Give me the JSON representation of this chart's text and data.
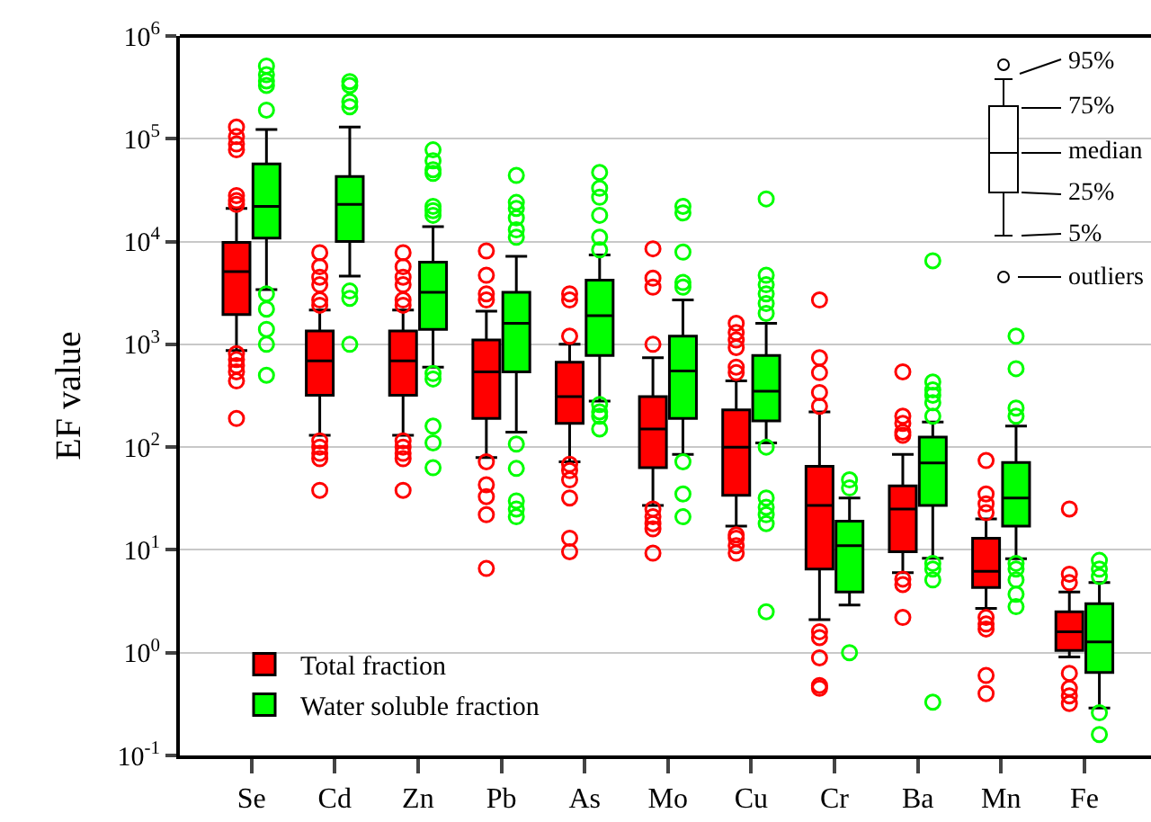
{
  "chart_data": {
    "type": "box",
    "ylabel": "EF value",
    "log": true,
    "grid": "y",
    "legend": "bottom left",
    "categories": [
      "Se",
      "Cd",
      "Zn",
      "Pb",
      "As",
      "Mo",
      "Cu",
      "Cr",
      "Ba",
      "Mn",
      "Fe"
    ],
    "ylim": [
      0.1,
      1000000
    ],
    "yticks": [
      {
        "value": 0.1,
        "label": "10$^{-1}$"
      },
      {
        "value": 1,
        "label": "10$^{0}$"
      },
      {
        "value": 10,
        "label": "10$^{1}$"
      },
      {
        "value": 100,
        "label": "10$^{2}$"
      },
      {
        "value": 1000,
        "label": "10$^{3}$"
      },
      {
        "value": 10000,
        "label": "10$^{4}$"
      },
      {
        "value": 100000,
        "label": "10$^{5}$"
      },
      {
        "value": 1000000,
        "label": "10$^{6}$"
      }
    ],
    "annotations": [
      "95%",
      "75%",
      "median",
      "25%",
      "5%",
      "outliers"
    ],
    "series": [
      {
        "name": "Total fraction",
        "color": "#ff0000",
        "boxes": [
          {
            "low": 870,
            "q1": 1950,
            "median": 5100,
            "q3": 9800,
            "high": 21000,
            "outliers": [
              130000,
              105000,
              89000,
              78000,
              28000,
              25000,
              23000,
              810,
              710,
              620,
              540,
              440,
              190
            ]
          },
          {
            "low": 130,
            "q1": 320,
            "median": 690,
            "q3": 1350,
            "high": 2150,
            "outliers": [
              7800,
              5700,
              4500,
              3800,
              2700,
              2400,
              115,
              100,
              87,
              77,
              38
            ]
          },
          {
            "low": 130,
            "q1": 320,
            "median": 690,
            "q3": 1350,
            "high": 2150,
            "outliers": [
              7800,
              5700,
              4500,
              3800,
              2700,
              2400,
              115,
              100,
              87,
              77,
              38
            ]
          },
          {
            "low": 79,
            "q1": 190,
            "median": 540,
            "q3": 1100,
            "high": 2100,
            "outliers": [
              8100,
              4700,
              3100,
              2700,
              72,
              43,
              33,
              22,
              6.6
            ]
          },
          {
            "low": 72,
            "q1": 170,
            "median": 310,
            "q3": 670,
            "high": 1000,
            "outliers": [
              3100,
              2700,
              1200,
              68,
              59,
              48,
              32,
              13,
              9.6
            ]
          },
          {
            "low": 27,
            "q1": 63,
            "median": 150,
            "q3": 310,
            "high": 740,
            "outliers": [
              8500,
              4400,
              3600,
              1000,
              25,
              21,
              18,
              16,
              9.3
            ]
          },
          {
            "low": 17,
            "q1": 34,
            "median": 100,
            "q3": 230,
            "high": 440,
            "outliers": [
              1600,
              1300,
              1100,
              930,
              600,
              530,
              14,
              13,
              11,
              9.3
            ]
          },
          {
            "low": 2.1,
            "q1": 6.5,
            "median": 27,
            "q3": 65,
            "high": 220,
            "outliers": [
              2700,
              740,
              530,
              340,
              250,
              1.6,
              1.4,
              0.89,
              0.48,
              0.45
            ]
          },
          {
            "low": 6,
            "q1": 9.6,
            "median": 25,
            "q3": 42,
            "high": 85,
            "outliers": [
              540,
              200,
              170,
              140,
              130,
              5.2,
              4.6,
              2.2
            ]
          },
          {
            "low": 2.7,
            "q1": 4.3,
            "median": 6.2,
            "q3": 13,
            "high": 20,
            "outliers": [
              74,
              35,
              28,
              23,
              2.2,
              1.9,
              1.7,
              0.6,
              0.4
            ]
          },
          {
            "low": 0.91,
            "q1": 1.05,
            "median": 1.6,
            "q3": 2.5,
            "high": 3.9,
            "outliers": [
              25,
              5.8,
              4.8,
              0.63,
              0.45,
              0.38,
              0.32
            ]
          }
        ]
      },
      {
        "name": "Water soluble fraction",
        "color": "#00ff00",
        "boxes": [
          {
            "low": 3400,
            "q1": 10800,
            "median": 22000,
            "q3": 57000,
            "high": 123000,
            "outliers": [
              510000,
              420000,
              365000,
              330000,
              190000,
              3100,
              2200,
              1400,
              1000,
              500
            ]
          },
          {
            "low": 4600,
            "q1": 10000,
            "median": 23000,
            "q3": 43000,
            "high": 130000,
            "outliers": [
              360000,
              330000,
              230000,
              205000,
              3300,
              2800,
              1000
            ]
          },
          {
            "low": 600,
            "q1": 1400,
            "median": 3200,
            "q3": 6300,
            "high": 14000,
            "outliers": [
              78000,
              61000,
              50000,
              46000,
              22000,
              20000,
              18000,
              520,
              460,
              160,
              110,
              63
            ]
          },
          {
            "low": 140,
            "q1": 540,
            "median": 1600,
            "q3": 3200,
            "high": 7200,
            "outliers": [
              44000,
              24000,
              21000,
              17000,
              13000,
              11000,
              107,
              62,
              30,
              25,
              21
            ]
          },
          {
            "low": 280,
            "q1": 780,
            "median": 1900,
            "q3": 4200,
            "high": 7400,
            "outliers": [
              47000,
              33000,
              27000,
              18000,
              11000,
              8300,
              260,
              220,
              200,
              150
            ]
          },
          {
            "low": 85,
            "q1": 190,
            "median": 550,
            "q3": 1200,
            "high": 2700,
            "outliers": [
              22000,
              19000,
              7900,
              4000,
              3600,
              72,
              35,
              21
            ]
          },
          {
            "low": 110,
            "q1": 180,
            "median": 350,
            "q3": 780,
            "high": 1600,
            "outliers": [
              26000,
              4700,
              3800,
              3100,
              2500,
              2000,
              100,
              32,
              26,
              22,
              18,
              2.5
            ]
          },
          {
            "low": 2.9,
            "q1": 3.9,
            "median": 11,
            "q3": 19,
            "high": 32,
            "outliers": [
              48,
              40,
              1.0
            ]
          },
          {
            "low": 8.3,
            "q1": 27,
            "median": 70,
            "q3": 125,
            "high": 175,
            "outliers": [
              6500,
              430,
              360,
              320,
              270,
              200,
              7.4,
              6.5,
              5.1,
              0.33
            ]
          },
          {
            "low": 8.2,
            "q1": 17,
            "median": 32,
            "q3": 71,
            "high": 160,
            "outliers": [
              1200,
              580,
              240,
              200,
              7.4,
              6.5,
              5.1,
              3.7,
              2.8
            ]
          },
          {
            "low": 0.29,
            "q1": 0.64,
            "median": 1.27,
            "q3": 3.0,
            "high": 4.8,
            "outliers": [
              7.9,
              6.5,
              5.5,
              0.26,
              0.16
            ]
          }
        ]
      }
    ]
  }
}
